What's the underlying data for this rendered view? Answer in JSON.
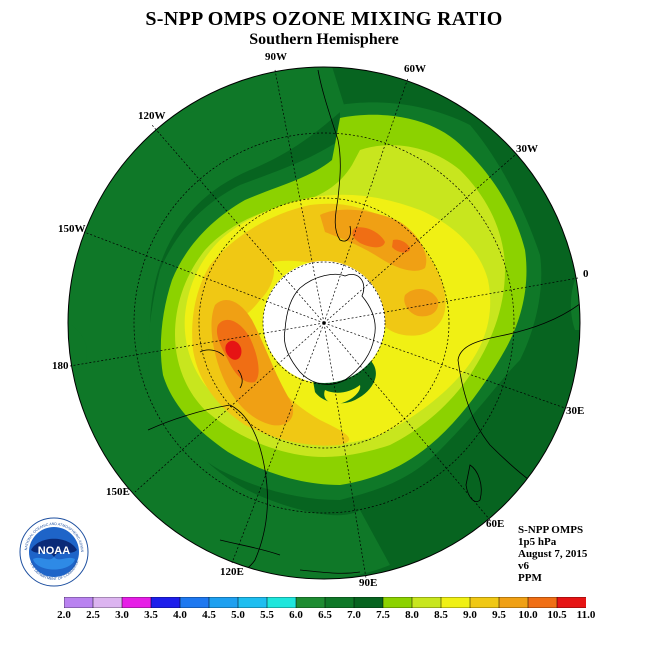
{
  "header": {
    "title": "S-NPP OMPS OZONE MIXING RATIO",
    "subtitle": "Southern Hemisphere"
  },
  "longitude_labels": [
    "90W",
    "60W",
    "30W",
    "0",
    "30E",
    "60E",
    "90E",
    "120E",
    "150E",
    "180",
    "150W",
    "120W"
  ],
  "info": {
    "instrument": "S-NPP OMPS",
    "pressure_level": "1p5 hPa",
    "date": "August 7, 2015",
    "version": "v6",
    "units": "PPM"
  },
  "logo": {
    "text": "NOAA",
    "ring_text": "NATIONAL OCEANIC AND ATMOSPHERIC ADMINISTRATION",
    "ring_text_bottom": "U.S. DEPARTMENT OF COMMERCE"
  },
  "colorbar": {
    "ticks": [
      "2.0",
      "2.5",
      "3.0",
      "3.5",
      "4.0",
      "4.5",
      "5.0",
      "5.5",
      "6.0",
      "6.5",
      "7.0",
      "7.5",
      "8.0",
      "8.5",
      "9.0",
      "9.5",
      "10.0",
      "10.5",
      "11.0"
    ],
    "colors": [
      "#b982f0",
      "#dcb4f0",
      "#e61ee6",
      "#1e1eeb",
      "#1e78f0",
      "#1ea0f0",
      "#1ebef0",
      "#1ee6dc",
      "#1e8c32",
      "#0f7828",
      "#076420",
      "#8cd200",
      "#c8e61e",
      "#f0f014",
      "#f0c814",
      "#f0a014",
      "#f06e14",
      "#e61414",
      "#8c5a3c"
    ]
  },
  "map_colors": {
    "outer": "#076420",
    "level_7_0": "#0f7828",
    "level_7_5": "#8cd200",
    "level_8_0": "#c8e61e",
    "level_8_5": "#f0f014",
    "level_9_0": "#f0c814",
    "level_9_5": "#f0a014",
    "level_10_0": "#f06e14",
    "level_10_5": "#e61414",
    "polar_night": "#ffffff"
  }
}
